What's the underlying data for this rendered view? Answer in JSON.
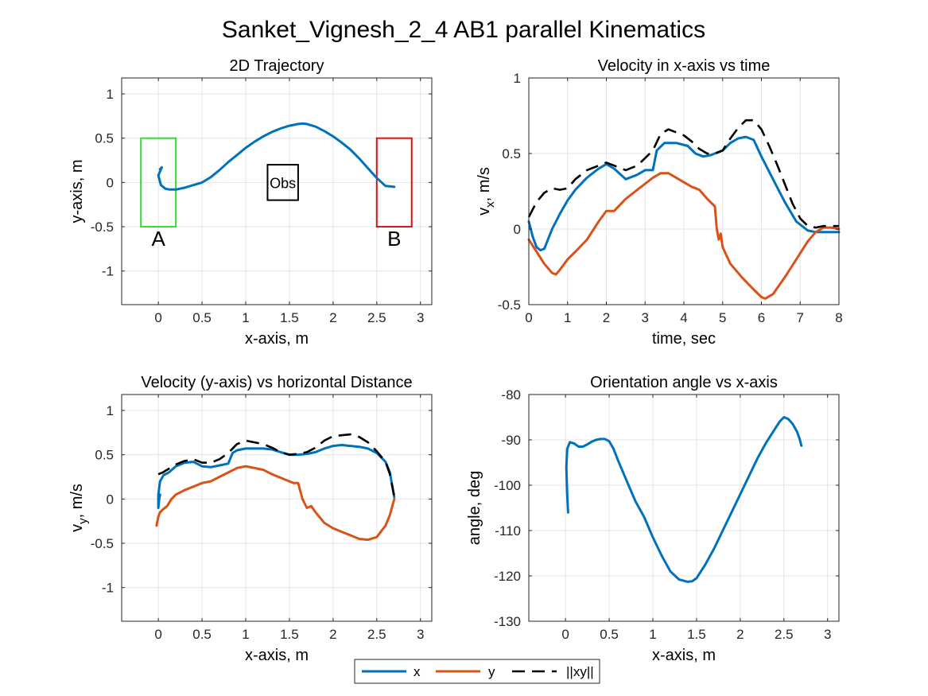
{
  "figure": {
    "title": "Sanket_Vignesh_2_4    AB1    parallel    Kinematics"
  },
  "legend": {
    "placement": "bottom-center",
    "entries": [
      {
        "label": "x",
        "color": "#0072BD",
        "style": "solid"
      },
      {
        "label": "y",
        "color": "#D95319",
        "style": "solid"
      },
      {
        "label": "||xy||",
        "color": "#000000",
        "style": "dashed"
      }
    ]
  },
  "chart_data": [
    {
      "type": "line",
      "title": "2D Trajectory",
      "xlabel": "x-axis, m",
      "ylabel": "y-axis, m",
      "xlim": [
        -0.42,
        3.13
      ],
      "ylim": [
        -1.38,
        1.18
      ],
      "grid": true,
      "xticks": [
        0,
        0.5,
        1,
        1.5,
        2,
        2.5,
        3
      ],
      "xtick_labels": [
        "0",
        "0.5",
        "1",
        "1.5",
        "2",
        "2.5",
        "3"
      ],
      "yticks": [
        -1,
        -0.5,
        0,
        0.5,
        1
      ],
      "ytick_labels": [
        "-1",
        "-0.5",
        "0",
        "0.5",
        "1"
      ],
      "series": [
        {
          "color": "#0072BD",
          "x": [
            0.02,
            0.04,
            0.0,
            0.03,
            0.08,
            0.13,
            0.2,
            0.3,
            0.4,
            0.5,
            0.6,
            0.7,
            0.8,
            0.9,
            1.0,
            1.1,
            1.2,
            1.3,
            1.4,
            1.5,
            1.6,
            1.65,
            1.7,
            1.8,
            1.9,
            2.0,
            2.1,
            2.2,
            2.3,
            2.4,
            2.5,
            2.6,
            2.7
          ],
          "y": [
            0.15,
            0.17,
            0.08,
            -0.03,
            -0.07,
            -0.08,
            -0.08,
            -0.06,
            -0.03,
            0.0,
            0.06,
            0.14,
            0.23,
            0.31,
            0.39,
            0.46,
            0.52,
            0.57,
            0.61,
            0.64,
            0.66,
            0.665,
            0.66,
            0.63,
            0.58,
            0.52,
            0.45,
            0.37,
            0.27,
            0.16,
            0.05,
            -0.04,
            -0.05
          ]
        }
      ],
      "shapes": [
        {
          "label": "A",
          "color": "#33dd33",
          "x": [
            -0.2,
            0.2
          ],
          "y": [
            -0.5,
            0.5
          ]
        },
        {
          "label": "Obs",
          "color": "#000000",
          "x": [
            1.25,
            1.6
          ],
          "y": [
            -0.2,
            0.2
          ]
        },
        {
          "label": "B",
          "color": "#dd1111",
          "x": [
            2.5,
            2.9
          ],
          "y": [
            -0.5,
            0.5
          ]
        }
      ]
    },
    {
      "type": "line",
      "title": "Velocity in x-axis vs time",
      "xlabel": "time, sec",
      "ylabel": "v",
      "ylabel_sub": "x",
      "ylabel_suffix": ", m/s",
      "xlim": [
        0,
        8
      ],
      "ylim": [
        -0.5,
        1
      ],
      "grid": true,
      "xticks": [
        0,
        1,
        2,
        3,
        4,
        5,
        6,
        7,
        8
      ],
      "xtick_labels": [
        "0",
        "1",
        "2",
        "3",
        "4",
        "5",
        "6",
        "7",
        "8"
      ],
      "yticks": [
        -0.5,
        0,
        0.5,
        1
      ],
      "ytick_labels": [
        "-0.5",
        "0",
        "0.5",
        "1"
      ],
      "series": [
        {
          "name": "x",
          "color": "#0072BD",
          "x": [
            0,
            0.1,
            0.2,
            0.3,
            0.4,
            0.6,
            0.8,
            1.0,
            1.2,
            1.5,
            1.8,
            2.0,
            2.2,
            2.5,
            2.8,
            3.0,
            3.2,
            3.3,
            3.5,
            3.8,
            4.1,
            4.3,
            4.5,
            4.7,
            5.0,
            5.2,
            5.4,
            5.6,
            5.8,
            6.0,
            6.3,
            6.6,
            6.9,
            7.2,
            7.4,
            7.6,
            7.8,
            8.0
          ],
          "y": [
            0.05,
            -0.05,
            -0.12,
            -0.14,
            -0.13,
            0.0,
            0.1,
            0.19,
            0.26,
            0.34,
            0.4,
            0.43,
            0.4,
            0.33,
            0.36,
            0.39,
            0.39,
            0.52,
            0.57,
            0.57,
            0.55,
            0.5,
            0.48,
            0.49,
            0.52,
            0.57,
            0.6,
            0.61,
            0.59,
            0.48,
            0.33,
            0.18,
            0.05,
            -0.01,
            -0.02,
            -0.02,
            -0.02,
            -0.02
          ]
        },
        {
          "name": "y",
          "color": "#D95319",
          "x": [
            0,
            0.2,
            0.4,
            0.6,
            0.7,
            0.8,
            1.0,
            1.2,
            1.5,
            1.8,
            2.0,
            2.2,
            2.5,
            2.8,
            3.0,
            3.2,
            3.4,
            3.6,
            3.8,
            4.0,
            4.2,
            4.4,
            4.6,
            4.8,
            4.85,
            4.9,
            4.95,
            5.0,
            5.2,
            5.5,
            5.8,
            6.0,
            6.1,
            6.3,
            6.6,
            6.9,
            7.2,
            7.4,
            7.6,
            7.8,
            8.0
          ],
          "y": [
            -0.07,
            -0.15,
            -0.23,
            -0.29,
            -0.3,
            -0.27,
            -0.2,
            -0.15,
            -0.07,
            0.05,
            0.12,
            0.12,
            0.2,
            0.26,
            0.3,
            0.34,
            0.37,
            0.37,
            0.34,
            0.31,
            0.28,
            0.26,
            0.2,
            0.15,
            0.0,
            -0.07,
            -0.03,
            -0.12,
            -0.23,
            -0.32,
            -0.4,
            -0.45,
            -0.46,
            -0.43,
            -0.32,
            -0.2,
            -0.08,
            -0.02,
            0.01,
            0.01,
            0.0
          ]
        },
        {
          "name": "||xy||",
          "color": "#000000",
          "dashed": true,
          "x": [
            0,
            0.2,
            0.4,
            0.6,
            0.8,
            1.0,
            1.2,
            1.5,
            1.8,
            2.0,
            2.2,
            2.5,
            2.8,
            3.0,
            3.2,
            3.4,
            3.6,
            3.8,
            4.0,
            4.2,
            4.4,
            4.6,
            4.8,
            5.0,
            5.2,
            5.4,
            5.6,
            5.8,
            6.0,
            6.2,
            6.4,
            6.6,
            6.8,
            7.0,
            7.2,
            7.4,
            7.6,
            7.8,
            8.0
          ],
          "y": [
            0.08,
            0.18,
            0.24,
            0.27,
            0.26,
            0.27,
            0.33,
            0.39,
            0.42,
            0.44,
            0.42,
            0.39,
            0.42,
            0.47,
            0.52,
            0.63,
            0.66,
            0.64,
            0.62,
            0.58,
            0.53,
            0.5,
            0.5,
            0.52,
            0.6,
            0.67,
            0.72,
            0.72,
            0.66,
            0.55,
            0.43,
            0.3,
            0.17,
            0.07,
            0.02,
            0.01,
            0.02,
            0.02,
            0.02
          ]
        }
      ]
    },
    {
      "type": "line",
      "title": "Velocity (y-axis) vs horizontal Distance",
      "xlabel": "x-axis, m",
      "ylabel": "v",
      "ylabel_sub": "y",
      "ylabel_suffix": ", m/s",
      "xlim": [
        -0.42,
        3.13
      ],
      "ylim": [
        -1.38,
        1.18
      ],
      "grid": true,
      "xticks": [
        0,
        0.5,
        1,
        1.5,
        2,
        2.5,
        3
      ],
      "xtick_labels": [
        "0",
        "0.5",
        "1",
        "1.5",
        "2",
        "2.5",
        "3"
      ],
      "yticks": [
        -1,
        -0.5,
        0,
        0.5,
        1
      ],
      "ytick_labels": [
        "-1",
        "-0.5",
        "0",
        "0.5",
        "1"
      ],
      "series": [
        {
          "name": "x",
          "color": "#0072BD",
          "x": [
            0.02,
            0.01,
            0.0,
            0.0,
            0.02,
            0.06,
            0.12,
            0.2,
            0.3,
            0.4,
            0.5,
            0.6,
            0.7,
            0.8,
            0.85,
            0.9,
            1.0,
            1.1,
            1.2,
            1.3,
            1.4,
            1.5,
            1.6,
            1.7,
            1.8,
            1.9,
            2.0,
            2.1,
            2.2,
            2.3,
            2.4,
            2.5,
            2.6,
            2.65,
            2.7
          ],
          "y": [
            0.05,
            0.0,
            -0.1,
            0.05,
            0.2,
            0.27,
            0.3,
            0.37,
            0.41,
            0.42,
            0.37,
            0.36,
            0.38,
            0.4,
            0.52,
            0.55,
            0.57,
            0.57,
            0.57,
            0.56,
            0.53,
            0.5,
            0.5,
            0.51,
            0.53,
            0.57,
            0.6,
            0.61,
            0.6,
            0.59,
            0.57,
            0.52,
            0.42,
            0.3,
            0.02
          ]
        },
        {
          "name": "y",
          "color": "#D95319",
          "x": [
            -0.02,
            -0.01,
            0.0,
            0.02,
            0.05,
            0.1,
            0.15,
            0.2,
            0.3,
            0.4,
            0.5,
            0.6,
            0.7,
            0.8,
            0.9,
            1.0,
            1.1,
            1.2,
            1.3,
            1.4,
            1.5,
            1.55,
            1.6,
            1.65,
            1.7,
            1.75,
            1.8,
            1.9,
            2.0,
            2.1,
            2.2,
            2.3,
            2.4,
            2.5,
            2.6,
            2.65,
            2.7
          ],
          "y": [
            -0.3,
            -0.25,
            -0.2,
            -0.15,
            -0.12,
            -0.08,
            0.0,
            0.05,
            0.1,
            0.14,
            0.18,
            0.2,
            0.25,
            0.3,
            0.35,
            0.37,
            0.35,
            0.33,
            0.28,
            0.24,
            0.2,
            0.18,
            0.18,
            0.0,
            -0.1,
            -0.08,
            -0.15,
            -0.27,
            -0.33,
            -0.37,
            -0.41,
            -0.45,
            -0.46,
            -0.43,
            -0.3,
            -0.18,
            0.0
          ]
        },
        {
          "name": "||xy||",
          "color": "#000000",
          "dashed": true,
          "x": [
            0.0,
            0.05,
            0.1,
            0.2,
            0.3,
            0.4,
            0.5,
            0.6,
            0.7,
            0.8,
            0.9,
            1.0,
            1.1,
            1.2,
            1.3,
            1.4,
            1.5,
            1.6,
            1.7,
            1.8,
            1.9,
            2.0,
            2.1,
            2.2,
            2.3,
            2.4,
            2.5,
            2.6,
            2.65,
            2.7
          ],
          "y": [
            0.28,
            0.3,
            0.33,
            0.39,
            0.43,
            0.45,
            0.41,
            0.41,
            0.45,
            0.52,
            0.62,
            0.66,
            0.64,
            0.62,
            0.58,
            0.53,
            0.5,
            0.51,
            0.53,
            0.58,
            0.66,
            0.71,
            0.72,
            0.73,
            0.7,
            0.64,
            0.54,
            0.42,
            0.28,
            0.03
          ]
        }
      ]
    },
    {
      "type": "line",
      "title": "Orientation angle vs x-axis",
      "xlabel": "x-axis, m",
      "ylabel": "angle, deg",
      "xlim": [
        -0.42,
        3.13
      ],
      "ylim": [
        -130,
        -80
      ],
      "grid": true,
      "xticks": [
        0,
        0.5,
        1,
        1.5,
        2,
        2.5,
        3
      ],
      "xtick_labels": [
        "0",
        "0.5",
        "1",
        "1.5",
        "2",
        "2.5",
        "3"
      ],
      "yticks": [
        -130,
        -120,
        -110,
        -100,
        -90,
        -80
      ],
      "ytick_labels": [
        "-130",
        "-120",
        "-110",
        "-100",
        "-90",
        "-80"
      ],
      "series": [
        {
          "color": "#0072BD",
          "x": [
            0.03,
            0.02,
            0.01,
            0.02,
            0.05,
            0.1,
            0.15,
            0.2,
            0.25,
            0.3,
            0.35,
            0.4,
            0.45,
            0.5,
            0.55,
            0.6,
            0.7,
            0.8,
            0.9,
            1.0,
            1.1,
            1.2,
            1.3,
            1.4,
            1.45,
            1.5,
            1.6,
            1.7,
            1.8,
            1.9,
            2.0,
            2.1,
            2.2,
            2.3,
            2.4,
            2.45,
            2.5,
            2.55,
            2.6,
            2.65,
            2.68,
            2.7
          ],
          "y": [
            -106,
            -102,
            -96,
            -92,
            -90.5,
            -90.8,
            -91.5,
            -91.5,
            -91,
            -90.4,
            -90,
            -89.8,
            -89.8,
            -90.3,
            -92,
            -94.5,
            -99,
            -103.5,
            -107,
            -111.5,
            -115.5,
            -119,
            -120.8,
            -121.3,
            -121.2,
            -120.5,
            -117.5,
            -114,
            -110,
            -106,
            -102,
            -98,
            -94,
            -90.5,
            -87.5,
            -86,
            -85,
            -85.4,
            -86.5,
            -88.2,
            -89.8,
            -91.3
          ]
        }
      ]
    }
  ]
}
